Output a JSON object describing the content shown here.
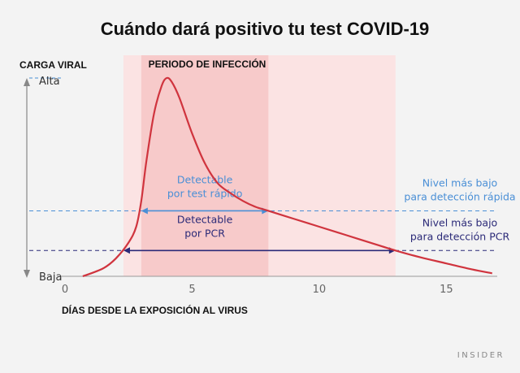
{
  "chart_data": {
    "type": "line",
    "title": "Cuándo dará positivo tu test COVID-19",
    "xlabel": "DÍAS DESDE LA EXPOSICIÓN AL VIRUS",
    "ylabel": "CARGA VIRAL",
    "xlim": [
      0,
      17
    ],
    "ylim": [
      0,
      1
    ],
    "x_ticks": [
      0,
      5,
      10,
      15
    ],
    "y_levels": {
      "high": "Alta",
      "low": "Baja"
    },
    "series": [
      {
        "color": "#d0343e",
        "x": [
          0.7,
          1.5,
          2.0,
          2.5,
          2.8,
          3.0,
          3.2,
          3.5,
          3.8,
          4.0,
          4.2,
          4.5,
          5.0,
          5.5,
          6.0,
          6.5,
          7.0,
          7.5,
          8.0,
          9.0,
          10.0,
          11.0,
          12.0,
          13.0,
          14.0,
          15.0,
          16.0,
          16.8
        ],
        "y": [
          0.0,
          0.04,
          0.09,
          0.17,
          0.25,
          0.38,
          0.58,
          0.82,
          0.96,
          1.0,
          0.98,
          0.9,
          0.72,
          0.57,
          0.47,
          0.42,
          0.38,
          0.35,
          0.33,
          0.29,
          0.25,
          0.21,
          0.17,
          0.13,
          0.095,
          0.065,
          0.035,
          0.015
        ]
      }
    ],
    "infection_period": {
      "label": "PERIODO DE INFECCIÓN",
      "range": [
        3.0,
        8.0
      ]
    },
    "shaded_band": {
      "range": [
        2.3,
        13.0
      ]
    },
    "thresholds": [
      {
        "name": "rapid",
        "level": 0.33,
        "color": "#4a8fd6",
        "right_label": [
          "Nivel más bajo",
          "para detección rápida"
        ],
        "detect_label": [
          "Detectable",
          "por test rápido"
        ],
        "detect_range": [
          3.0,
          8.0
        ]
      },
      {
        "name": "pcr",
        "level": 0.13,
        "color": "#2b2a78",
        "right_label": [
          "Nivel más bajo",
          "para detección PCR"
        ],
        "detect_label": [
          "Detectable",
          "por PCR"
        ],
        "detect_range": [
          2.3,
          13.0
        ]
      }
    ]
  },
  "source": "INSIDER"
}
